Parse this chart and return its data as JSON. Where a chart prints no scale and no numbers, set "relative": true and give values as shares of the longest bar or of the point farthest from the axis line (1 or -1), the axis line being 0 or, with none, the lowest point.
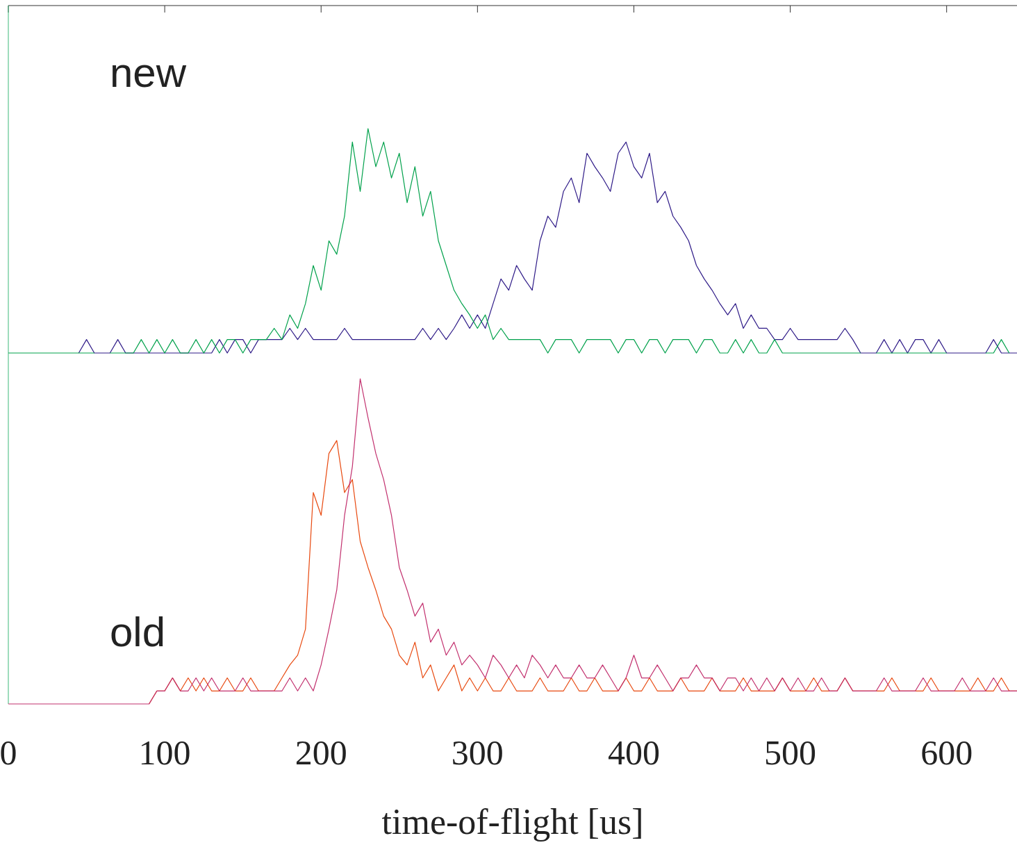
{
  "chart_data": [
    {
      "type": "line",
      "relative": true,
      "tick_labels": false,
      "xlim": [
        0,
        645
      ],
      "xticks": [
        0,
        100,
        200,
        300,
        400,
        500,
        600
      ],
      "annotations": [
        "new"
      ],
      "x": [
        0,
        5,
        10,
        15,
        20,
        25,
        30,
        35,
        40,
        45,
        50,
        55,
        60,
        65,
        70,
        75,
        80,
        85,
        90,
        95,
        100,
        105,
        110,
        115,
        120,
        125,
        130,
        135,
        140,
        145,
        150,
        155,
        160,
        165,
        170,
        175,
        180,
        185,
        190,
        195,
        200,
        205,
        210,
        215,
        220,
        225,
        230,
        235,
        240,
        245,
        250,
        255,
        260,
        265,
        270,
        275,
        280,
        285,
        290,
        295,
        300,
        305,
        310,
        315,
        320,
        325,
        330,
        335,
        340,
        345,
        350,
        355,
        360,
        365,
        370,
        375,
        380,
        385,
        390,
        395,
        400,
        405,
        410,
        415,
        420,
        425,
        430,
        435,
        440,
        445,
        450,
        455,
        460,
        465,
        470,
        475,
        480,
        485,
        490,
        495,
        500,
        505,
        510,
        515,
        520,
        525,
        530,
        535,
        540,
        545,
        550,
        555,
        560,
        565,
        570,
        575,
        580,
        585,
        590,
        595,
        600,
        605,
        610,
        615,
        620,
        625,
        630,
        635,
        640,
        645
      ],
      "series": [
        {
          "color": "#2e1a87",
          "values": [
            null,
            null,
            null,
            null,
            null,
            null,
            null,
            null,
            null,
            0,
            0.06,
            0,
            0,
            0,
            0.06,
            0,
            0,
            0,
            0,
            0,
            0,
            0,
            0,
            0,
            0,
            0,
            0,
            0.06,
            0,
            0.06,
            0.06,
            0,
            0.06,
            0.06,
            0.06,
            0.06,
            0.11,
            0.06,
            0.11,
            0.06,
            0.06,
            0.06,
            0.06,
            0.11,
            0.06,
            0.06,
            0.06,
            0.06,
            0.06,
            0.06,
            0.06,
            0.06,
            0.06,
            0.11,
            0.06,
            0.11,
            0.06,
            0.11,
            0.17,
            0.11,
            0.17,
            0.11,
            0.22,
            0.33,
            0.28,
            0.39,
            0.33,
            0.28,
            0.5,
            0.61,
            0.56,
            0.72,
            0.78,
            0.67,
            0.89,
            0.83,
            0.78,
            0.72,
            0.89,
            0.94,
            0.83,
            0.78,
            0.89,
            0.67,
            0.72,
            0.61,
            0.56,
            0.5,
            0.39,
            0.33,
            0.28,
            0.22,
            0.17,
            0.22,
            0.11,
            0.17,
            0.11,
            0.11,
            0.06,
            0.06,
            0.11,
            0.06,
            0.06,
            0.06,
            0.06,
            0.06,
            0.06,
            0.11,
            0.06,
            0,
            0,
            0,
            0.06,
            0,
            0.06,
            0,
            0.06,
            0.06,
            0,
            0.06,
            0,
            0,
            0,
            0,
            0,
            0,
            0.06,
            0,
            0,
            0
          ]
        },
        {
          "color": "#00a14b",
          "values": [
            0,
            0,
            0,
            0,
            0,
            0,
            0,
            0,
            0,
            0,
            0,
            0,
            null,
            0,
            0,
            0,
            0,
            0.06,
            0,
            0.06,
            0,
            0.06,
            0,
            0,
            0.06,
            0,
            0.06,
            0,
            0.06,
            0.06,
            0,
            0.06,
            0.06,
            0.06,
            0.11,
            0.06,
            0.17,
            0.11,
            0.22,
            0.39,
            0.28,
            0.5,
            0.44,
            0.61,
            0.94,
            0.72,
            1,
            0.83,
            0.94,
            0.78,
            0.89,
            0.67,
            0.83,
            0.61,
            0.72,
            0.5,
            0.39,
            0.28,
            0.22,
            0.17,
            0.11,
            0.17,
            0.06,
            0.11,
            0.06,
            0.06,
            0.06,
            0.06,
            0.06,
            0,
            0.06,
            0.06,
            0.06,
            0,
            0.06,
            0.06,
            0.06,
            0.06,
            0,
            0.06,
            0.06,
            0,
            0.06,
            0.06,
            0,
            0.06,
            0.06,
            0.06,
            0,
            0.06,
            0.06,
            0,
            0,
            0.06,
            0,
            0.06,
            0,
            0,
            0.06,
            0,
            0,
            0,
            0,
            0,
            0,
            0,
            0,
            0,
            0,
            0,
            null,
            0,
            0,
            0,
            0,
            0,
            0,
            0,
            0,
            0,
            0,
            null,
            null,
            null,
            null,
            0,
            0,
            0.06,
            0,
            null
          ]
        }
      ]
    },
    {
      "type": "line",
      "relative": true,
      "tick_labels": "x",
      "xlim": [
        0,
        645
      ],
      "xticks": [
        0,
        100,
        200,
        300,
        400,
        500,
        600
      ],
      "xlabel": "time-of-flight [us]",
      "annotations": [
        "old"
      ],
      "x": [
        0,
        5,
        10,
        15,
        20,
        25,
        30,
        35,
        40,
        45,
        50,
        55,
        60,
        65,
        70,
        75,
        80,
        85,
        90,
        95,
        100,
        105,
        110,
        115,
        120,
        125,
        130,
        135,
        140,
        145,
        150,
        155,
        160,
        165,
        170,
        175,
        180,
        185,
        190,
        195,
        200,
        205,
        210,
        215,
        220,
        225,
        230,
        235,
        240,
        245,
        250,
        255,
        260,
        265,
        270,
        275,
        280,
        285,
        290,
        295,
        300,
        305,
        310,
        315,
        320,
        325,
        330,
        335,
        340,
        345,
        350,
        355,
        360,
        365,
        370,
        375,
        380,
        385,
        390,
        395,
        400,
        405,
        410,
        415,
        420,
        425,
        430,
        435,
        440,
        445,
        450,
        455,
        460,
        465,
        470,
        475,
        480,
        485,
        490,
        495,
        500,
        505,
        510,
        515,
        520,
        525,
        530,
        535,
        540,
        545,
        550,
        555,
        560,
        565,
        570,
        575,
        580,
        585,
        590,
        595,
        600,
        605,
        610,
        615,
        620,
        625,
        630,
        635,
        640,
        645
      ],
      "series": [
        {
          "color": "#e8490f",
          "values": [
            null,
            null,
            null,
            null,
            null,
            null,
            null,
            null,
            null,
            null,
            null,
            null,
            null,
            null,
            null,
            null,
            null,
            null,
            0,
            0.04,
            0.04,
            0.08,
            0.04,
            0.08,
            0.04,
            0.08,
            0.04,
            0.04,
            0.08,
            0.04,
            0.04,
            0.08,
            0.04,
            0.04,
            0.04,
            0.08,
            0.12,
            0.15,
            0.23,
            0.65,
            0.58,
            0.77,
            0.81,
            0.65,
            0.69,
            0.5,
            0.42,
            0.35,
            0.27,
            0.23,
            0.15,
            0.12,
            0.19,
            0.08,
            0.12,
            0.04,
            0.08,
            0.12,
            0.04,
            0.08,
            0.04,
            0.08,
            0.04,
            0.04,
            0.08,
            0.04,
            0.04,
            0.04,
            0.08,
            0.04,
            0.04,
            0.04,
            0.08,
            0.04,
            0.04,
            0.08,
            0.04,
            0.04,
            0.04,
            0.08,
            0.04,
            0.04,
            0.08,
            0.04,
            0.04,
            0.04,
            0.08,
            0.04,
            0.04,
            0.04,
            0.08,
            0.04,
            0.04,
            0.04,
            0.08,
            0.04,
            0.04,
            0.04,
            0.04,
            0.08,
            0.04,
            0.04,
            0.04,
            0.08,
            0.04,
            0.04,
            0.04,
            0.08,
            0.04,
            0.04,
            0.04,
            0.04,
            0.04,
            0.08,
            0.04,
            0.04,
            0.04,
            0.04,
            0.08,
            0.04,
            0.04,
            0.04,
            0.04,
            0.04,
            0.08,
            0.04,
            0.04,
            0.08,
            0.04,
            0.04
          ]
        },
        {
          "color": "#c2306e",
          "values": [
            0,
            0,
            0,
            0,
            0,
            0,
            0,
            0,
            0,
            0,
            0,
            0,
            0,
            0,
            0,
            0,
            0,
            0,
            0,
            0.04,
            0.04,
            0.08,
            0.04,
            0.04,
            0.08,
            0.04,
            0.08,
            0.04,
            0.04,
            0.04,
            0.08,
            0.04,
            0.04,
            0.04,
            0.04,
            0.04,
            0.08,
            0.04,
            0.08,
            0.04,
            0.12,
            0.23,
            0.35,
            0.58,
            0.73,
            1,
            0.88,
            0.77,
            0.69,
            0.58,
            0.42,
            0.35,
            0.27,
            0.31,
            0.19,
            0.23,
            0.15,
            0.19,
            0.12,
            0.15,
            0.12,
            0.08,
            0.15,
            0.12,
            0.08,
            0.12,
            0.08,
            0.15,
            0.12,
            0.08,
            0.12,
            0.08,
            0.08,
            0.12,
            0.08,
            0.08,
            0.12,
            0.08,
            0.04,
            0.08,
            0.15,
            0.08,
            0.08,
            0.12,
            0.08,
            0.04,
            0.08,
            0.08,
            0.12,
            0.08,
            0.08,
            0.04,
            0.08,
            0.08,
            0.04,
            0.08,
            0.04,
            0.08,
            0.04,
            0.08,
            0.04,
            0.08,
            0.04,
            0.04,
            0.08,
            0.04,
            0.04,
            0.08,
            0.04,
            0.04,
            0.04,
            0.04,
            0.08,
            0.04,
            0.04,
            0.04,
            0.04,
            0.08,
            0.04,
            0.04,
            0.04,
            0.04,
            0.08,
            0.04,
            0.04,
            0.04,
            0.08,
            0.04,
            0.04,
            0.04
          ]
        }
      ]
    }
  ]
}
